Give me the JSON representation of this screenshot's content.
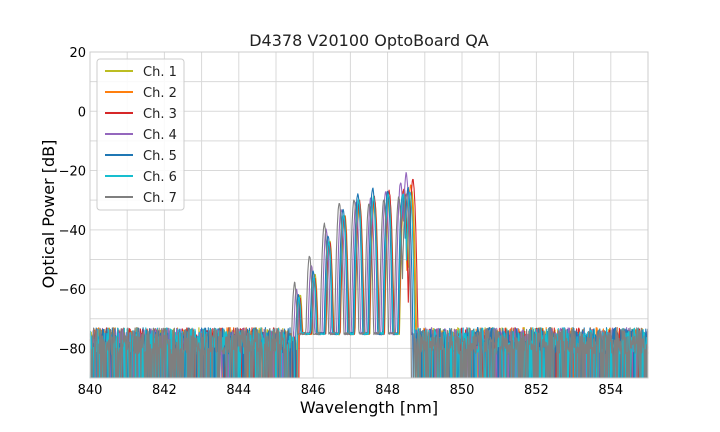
{
  "chart_data": {
    "type": "line",
    "title": "D4378 V20100 OptoBoard QA",
    "xlabel": "Wavelength [nm]",
    "ylabel": "Optical Power [dB]",
    "xlim": [
      840,
      855
    ],
    "ylim": [
      -90,
      20
    ],
    "xticks": [
      840,
      842,
      844,
      846,
      848,
      850,
      852,
      854
    ],
    "yticks": [
      20,
      0,
      -20,
      -40,
      -60,
      -80
    ],
    "grid": true,
    "legend_position": "top-left",
    "noise_floor": {
      "range": [
        -90,
        -72
      ],
      "typical": -80
    },
    "series": [
      {
        "name": "Ch. 1",
        "color": "#bcbd22",
        "shift": 0.08,
        "peaks": [
          [
            845.65,
            -62
          ],
          [
            846.05,
            -55
          ],
          [
            846.45,
            -44
          ],
          [
            846.85,
            -35
          ],
          [
            847.25,
            -31
          ],
          [
            847.65,
            -30
          ],
          [
            848.05,
            -29
          ],
          [
            848.45,
            -28
          ],
          [
            848.65,
            -27
          ]
        ],
        "edges": [
          845.55,
          848.9
        ]
      },
      {
        "name": "Ch. 2",
        "color": "#ff7f0e",
        "shift": 0.1,
        "peaks": [
          [
            845.62,
            -64
          ],
          [
            846.02,
            -57
          ],
          [
            846.42,
            -46
          ],
          [
            846.82,
            -37
          ],
          [
            847.22,
            -32
          ],
          [
            847.62,
            -31
          ],
          [
            848.02,
            -29
          ],
          [
            848.42,
            -27
          ],
          [
            848.62,
            -25
          ]
        ],
        "edges": [
          845.52,
          848.85
        ]
      },
      {
        "name": "Ch. 3",
        "color": "#d62728",
        "shift": 0.12,
        "peaks": [
          [
            845.64,
            -63
          ],
          [
            846.04,
            -56
          ],
          [
            846.44,
            -44
          ],
          [
            846.84,
            -35
          ],
          [
            847.24,
            -30
          ],
          [
            847.64,
            -29
          ],
          [
            848.04,
            -27
          ],
          [
            848.44,
            -26
          ],
          [
            848.68,
            -23
          ]
        ],
        "edges": [
          845.55,
          848.95
        ]
      },
      {
        "name": "Ch. 4",
        "color": "#9467bd",
        "shift": -0.05,
        "peaks": [
          [
            845.55,
            -60
          ],
          [
            845.95,
            -52
          ],
          [
            846.35,
            -40
          ],
          [
            846.75,
            -33
          ],
          [
            847.15,
            -31
          ],
          [
            847.55,
            -29
          ],
          [
            847.95,
            -27
          ],
          [
            848.35,
            -24
          ],
          [
            848.5,
            -21
          ]
        ],
        "edges": [
          845.4,
          848.75
        ]
      },
      {
        "name": "Ch. 5",
        "color": "#1f77b4",
        "shift": 0.0,
        "peaks": [
          [
            845.6,
            -62
          ],
          [
            846.0,
            -54
          ],
          [
            846.4,
            -42
          ],
          [
            846.8,
            -33
          ],
          [
            847.2,
            -28
          ],
          [
            847.6,
            -26
          ],
          [
            848.0,
            -27
          ],
          [
            848.4,
            -28
          ],
          [
            848.55,
            -26
          ]
        ],
        "edges": [
          845.45,
          848.75
        ]
      },
      {
        "name": "Ch. 6",
        "color": "#17becf",
        "shift": 0.04,
        "peaks": [
          [
            845.62,
            -63
          ],
          [
            846.02,
            -56
          ],
          [
            846.42,
            -44
          ],
          [
            846.82,
            -35
          ],
          [
            847.22,
            -30
          ],
          [
            847.62,
            -29
          ],
          [
            848.02,
            -28
          ],
          [
            848.42,
            -28
          ],
          [
            848.6,
            -27
          ]
        ],
        "edges": [
          845.5,
          848.8
        ]
      },
      {
        "name": "Ch. 7",
        "color": "#7f7f7f",
        "shift": -0.08,
        "peaks": [
          [
            845.5,
            -58
          ],
          [
            845.9,
            -49
          ],
          [
            846.3,
            -38
          ],
          [
            846.7,
            -31
          ],
          [
            847.1,
            -30
          ],
          [
            847.5,
            -31
          ],
          [
            847.9,
            -30
          ],
          [
            848.3,
            -29
          ],
          [
            848.5,
            -28
          ]
        ],
        "edges": [
          845.35,
          848.7
        ]
      }
    ]
  }
}
